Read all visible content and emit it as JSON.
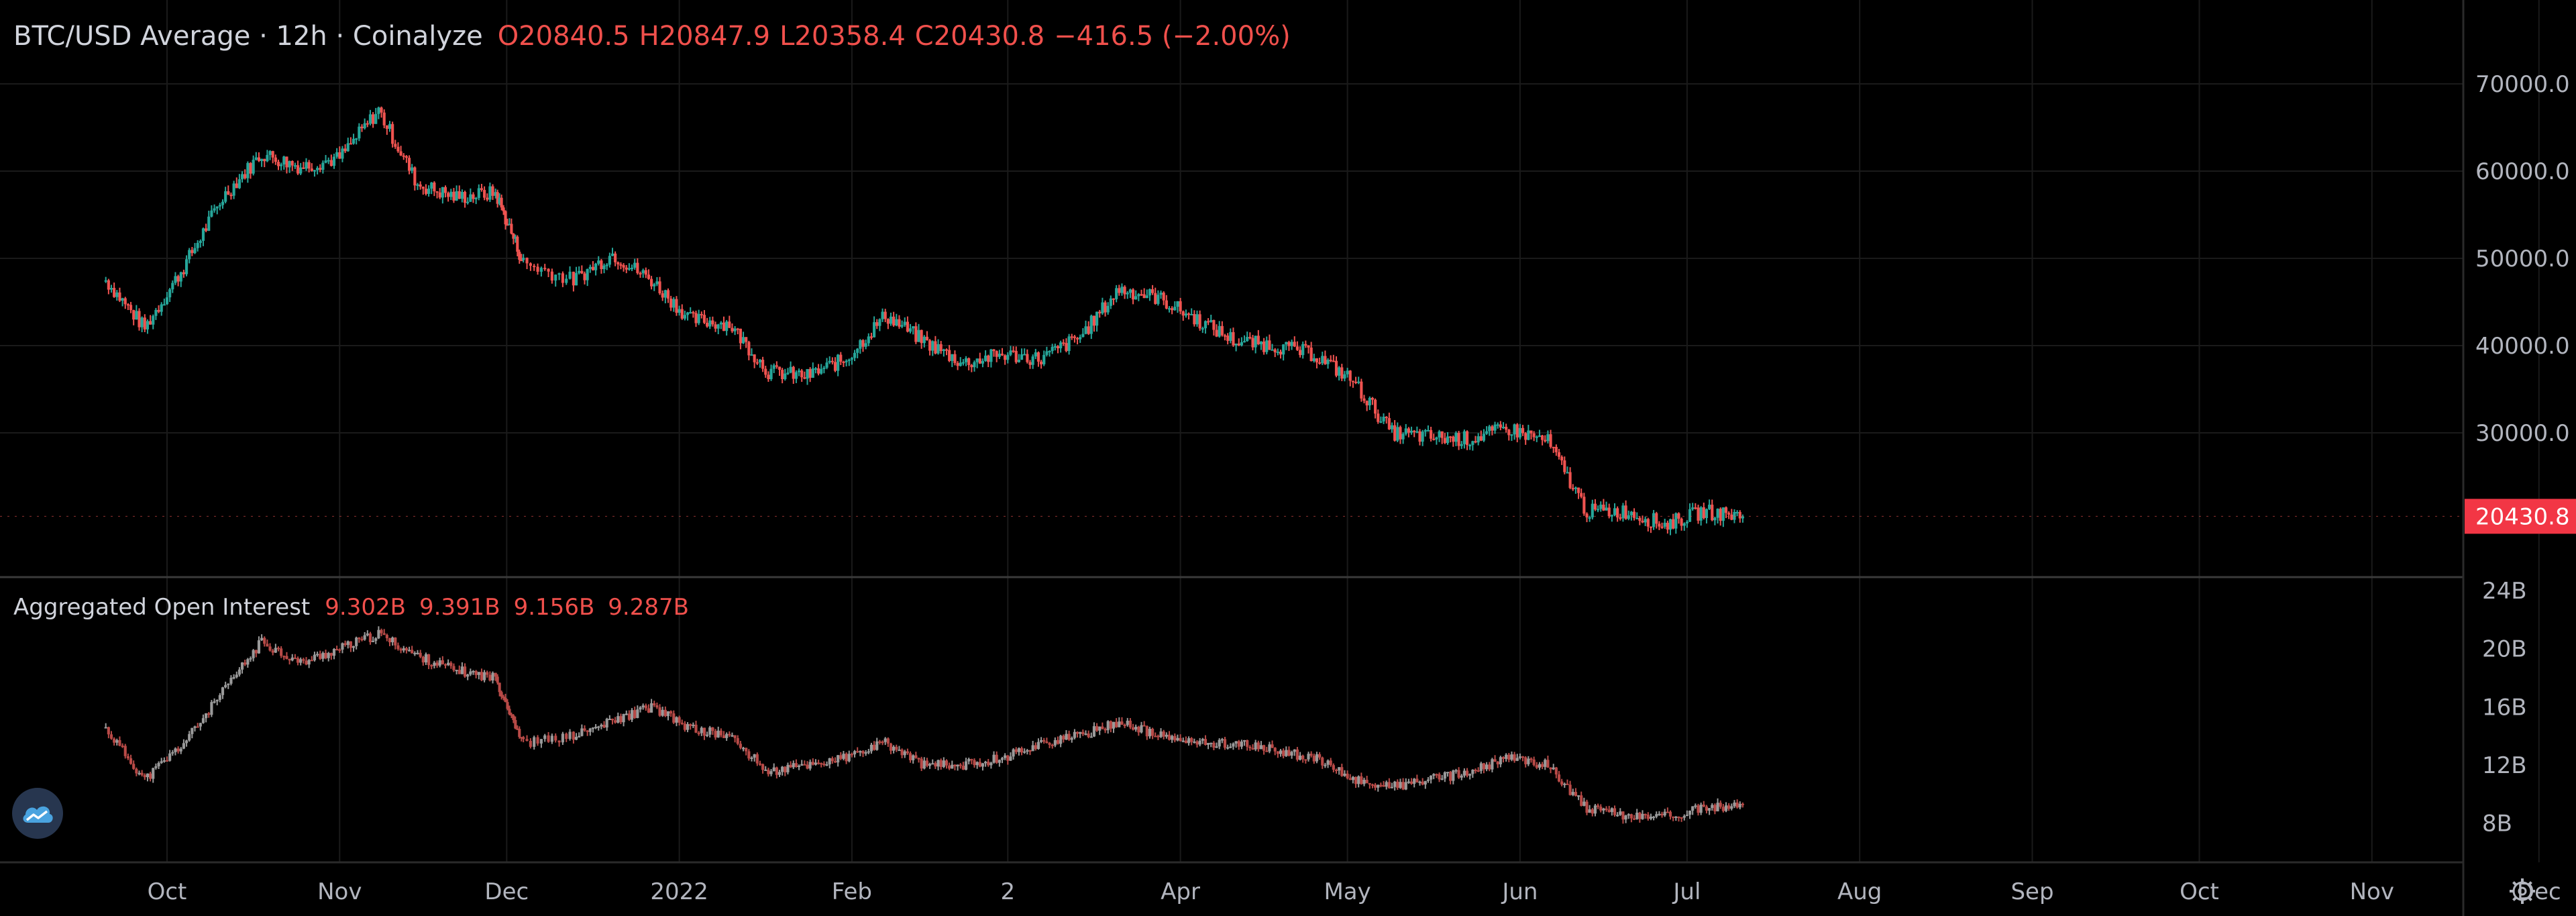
{
  "legend": {
    "title": "BTC/USD Average · 12h · Coinalyze",
    "open": "O20840.5",
    "high": "H20847.9",
    "low": "L20358.4",
    "close": "C20430.8",
    "change": "−416.5 (−2.00%)"
  },
  "oi_legend": {
    "title": "Aggregated Open Interest",
    "values": [
      "9.302B",
      "9.391B",
      "9.156B",
      "9.287B"
    ]
  },
  "price_axis": {
    "ticks": [
      "70000.0",
      "60000.0",
      "50000.0",
      "40000.0",
      "30000.0"
    ],
    "last_price_label": "20430.8"
  },
  "oi_axis": {
    "ticks": [
      "24B",
      "20B",
      "16B",
      "12B",
      "8B"
    ]
  },
  "time_axis": {
    "labels": [
      "Oct",
      "Nov",
      "Dec",
      "2022",
      "Feb",
      "2",
      "Apr",
      "May",
      "Jun",
      "Jul",
      "Aug",
      "Sep",
      "Oct",
      "Nov",
      "Dec"
    ]
  },
  "colors": {
    "background": "#000000",
    "up": "#26a69a",
    "down": "#ef5350",
    "last_price_bg": "#f23645",
    "grid": "#1a1a1a",
    "divider": "#3a3a3a",
    "axis_text": "#b2b5be",
    "oi_line": "#9a9a9a"
  },
  "icons": {
    "logo": "coinalyze-cloud-logo",
    "settings": "gear-icon"
  },
  "chart_data": [
    {
      "type": "candlestick",
      "title": "BTC/USD Average · 12h · Coinalyze",
      "x": [
        "2021-09-20",
        "2021-09-27",
        "2021-10-04",
        "2021-10-11",
        "2021-10-18",
        "2021-10-25",
        "2021-11-01",
        "2021-11-08",
        "2021-11-15",
        "2021-11-22",
        "2021-11-29",
        "2021-12-04",
        "2021-12-13",
        "2021-12-20",
        "2021-12-27",
        "2022-01-03",
        "2022-01-10",
        "2022-01-17",
        "2022-01-24",
        "2022-01-31",
        "2022-02-07",
        "2022-02-14",
        "2022-02-21",
        "2022-02-28",
        "2022-03-07",
        "2022-03-14",
        "2022-03-21",
        "2022-03-28",
        "2022-04-04",
        "2022-04-11",
        "2022-04-18",
        "2022-04-25",
        "2022-05-02",
        "2022-05-09",
        "2022-05-16",
        "2022-05-23",
        "2022-05-30",
        "2022-06-06",
        "2022-06-13",
        "2022-06-20",
        "2022-06-27",
        "2022-07-04",
        "2022-07-11"
      ],
      "close": [
        47500,
        42000,
        49000,
        57000,
        62000,
        60500,
        61500,
        67000,
        58500,
        57000,
        57500,
        49500,
        47500,
        50500,
        47500,
        43000,
        42500,
        37000,
        36500,
        38500,
        43500,
        40500,
        38000,
        39000,
        38500,
        41000,
        46500,
        45500,
        43000,
        40500,
        40000,
        39000,
        36000,
        30000,
        29500,
        29300,
        30500,
        29000,
        21000,
        21000,
        19500,
        21000,
        20430.8
      ],
      "ylim": [
        15000,
        75000
      ],
      "yticks": [
        30000,
        40000,
        50000,
        60000,
        70000
      ],
      "last_price": 20430.8
    },
    {
      "type": "line",
      "title": "Aggregated Open Interest",
      "unit": "B",
      "x": [
        "2021-09-20",
        "2021-09-27",
        "2021-10-04",
        "2021-10-11",
        "2021-10-18",
        "2021-10-25",
        "2021-11-01",
        "2021-11-08",
        "2021-11-15",
        "2021-11-22",
        "2021-11-29",
        "2021-12-04",
        "2021-12-13",
        "2021-12-20",
        "2021-12-27",
        "2022-01-03",
        "2022-01-10",
        "2022-01-17",
        "2022-01-24",
        "2022-01-31",
        "2022-02-07",
        "2022-02-14",
        "2022-02-21",
        "2022-02-28",
        "2022-03-07",
        "2022-03-14",
        "2022-03-21",
        "2022-03-28",
        "2022-04-04",
        "2022-04-11",
        "2022-04-18",
        "2022-04-25",
        "2022-05-02",
        "2022-05-09",
        "2022-05-16",
        "2022-05-23",
        "2022-05-30",
        "2022-06-06",
        "2022-06-13",
        "2022-06-20",
        "2022-06-27",
        "2022-07-04",
        "2022-07-11"
      ],
      "values": [
        14.5,
        11.0,
        13.5,
        17.0,
        20.5,
        19.0,
        20.0,
        21.0,
        19.5,
        18.5,
        18.0,
        13.5,
        14.0,
        15.0,
        16.0,
        14.5,
        14.0,
        11.5,
        12.0,
        12.5,
        13.5,
        12.0,
        12.0,
        12.5,
        13.5,
        14.0,
        15.0,
        14.0,
        13.5,
        13.5,
        13.0,
        12.5,
        11.0,
        10.5,
        11.0,
        11.5,
        12.5,
        12.0,
        9.0,
        8.5,
        8.5,
        9.0,
        9.287
      ],
      "ylim": [
        6,
        24
      ],
      "yticks": [
        8,
        12,
        16,
        20,
        24
      ]
    }
  ]
}
